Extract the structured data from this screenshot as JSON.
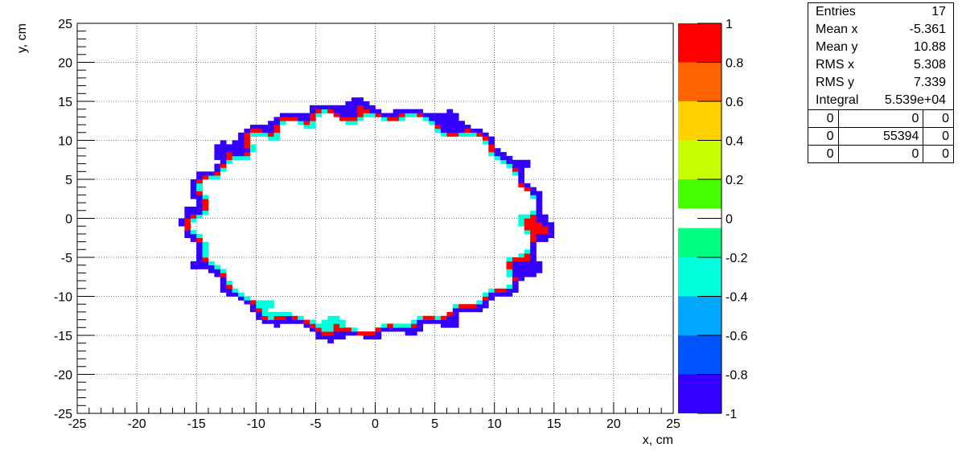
{
  "chart_data": {
    "type": "heatmap",
    "title": "",
    "xlabel": "x, cm",
    "ylabel": "y, cm",
    "xlim": [
      -25,
      25
    ],
    "ylim": [
      -25,
      25
    ],
    "x_ticks": [
      "-25",
      "-20",
      "-15",
      "-10",
      "-5",
      "0",
      "5",
      "10",
      "15",
      "20",
      "25"
    ],
    "y_ticks": [
      "-25",
      "-20",
      "-15",
      "-10",
      "-5",
      "0",
      "5",
      "10",
      "15",
      "20",
      "25"
    ],
    "grid": true,
    "colorbar": {
      "range": [
        -1,
        1
      ],
      "ticks": [
        "-1",
        "-0.8",
        "-0.6",
        "-0.4",
        "-0.2",
        "0",
        "0.2",
        "0.4",
        "0.6",
        "0.8",
        "1"
      ],
      "bands": [
        {
          "from": -1.0,
          "to": -0.8,
          "color": "#3300ff"
        },
        {
          "from": -0.8,
          "to": -0.6,
          "color": "#0055ff"
        },
        {
          "from": -0.6,
          "to": -0.4,
          "color": "#00a6ff"
        },
        {
          "from": -0.4,
          "to": -0.2,
          "color": "#00ffdd"
        },
        {
          "from": -0.2,
          "to": -0.05,
          "color": "#00ff80"
        },
        {
          "from": 0.05,
          "to": 0.2,
          "color": "#44ff00"
        },
        {
          "from": 0.2,
          "to": 0.4,
          "color": "#c8ff00"
        },
        {
          "from": 0.4,
          "to": 0.6,
          "color": "#ffd200"
        },
        {
          "from": 0.6,
          "to": 0.8,
          "color": "#ff6400"
        },
        {
          "from": 0.8,
          "to": 1.0,
          "color": "#ff0000"
        }
      ]
    },
    "ring": {
      "shape": "ellipse",
      "center": [
        -0.8,
        -0.4
      ],
      "semi_axis_x": 14.2,
      "semi_axis_y": 13.9,
      "outer_value": -1,
      "mid_value": 1,
      "inner_value": -0.3
    }
  },
  "stats": {
    "rows": [
      {
        "label": "Entries",
        "value": "17"
      },
      {
        "label": "Mean x",
        "value": "-5.361"
      },
      {
        "label": "Mean y",
        "value": "10.88"
      },
      {
        "label": "RMS x",
        "value": "5.308"
      },
      {
        "label": "RMS y",
        "value": "7.339"
      },
      {
        "label": "Integral",
        "value": "5.539e+04"
      }
    ],
    "grid": [
      [
        "0",
        "0",
        "0"
      ],
      [
        "0",
        "55394",
        "0"
      ],
      [
        "0",
        "0",
        "0"
      ]
    ]
  }
}
